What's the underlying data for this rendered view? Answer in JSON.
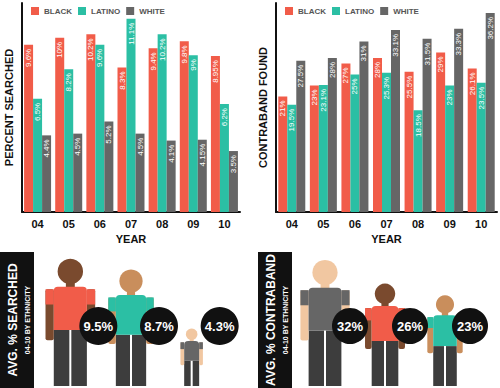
{
  "chart_data": [
    {
      "type": "bar",
      "ylabel": "PERCENT SEARCHED",
      "xlabel": "YEAR",
      "categories": [
        "04",
        "05",
        "06",
        "07",
        "08",
        "09",
        "10"
      ],
      "series": [
        {
          "name": "BLACK",
          "color": "#f15c49",
          "values": [
            9.6,
            10,
            10.2,
            8.3,
            9.4,
            9.8,
            8.95
          ],
          "value_labels": [
            "9.6%",
            "10%",
            "10.2%",
            "8.3%",
            "9.4%",
            "9.8%",
            "8.95%"
          ]
        },
        {
          "name": "LATINO",
          "color": "#2bbfa4",
          "values": [
            6.5,
            8.2,
            9.6,
            11.1,
            10.2,
            9,
            6.2
          ],
          "value_labels": [
            "6.5%",
            "8.2%",
            "9.6%",
            "11.1%",
            "10.2%",
            "9%",
            "6.2%"
          ]
        },
        {
          "name": "WHITE",
          "color": "#666666",
          "values": [
            4.4,
            4.5,
            5.2,
            4.5,
            4.1,
            4.15,
            3.5
          ],
          "value_labels": [
            "4.4%",
            "4.5%",
            "5.2%",
            "4.5%",
            "4.1%",
            "4.15%",
            "3.5%"
          ]
        }
      ],
      "ylim": [
        0,
        12
      ],
      "yticks": [],
      "tick_labels": "x",
      "legend": "upper left",
      "data_labels": true
    },
    {
      "type": "bar",
      "ylabel": "CONTRABAND FOUND",
      "xlabel": "YEAR",
      "categories": [
        "04",
        "05",
        "06",
        "07",
        "08",
        "09",
        "10"
      ],
      "series": [
        {
          "name": "BLACK",
          "color": "#f15c49",
          "values": [
            21,
            23,
            27,
            28,
            25.5,
            29,
            26.1
          ],
          "value_labels": [
            "21%",
            "23%",
            "27%",
            "28%",
            "25.5%",
            "29%",
            "26.1%"
          ]
        },
        {
          "name": "LATINO",
          "color": "#2bbfa4",
          "values": [
            19.5,
            23.1,
            25,
            25.3,
            18.5,
            23,
            23.5
          ],
          "value_labels": [
            "19.5%",
            "23.1%",
            "25%",
            "25.3%",
            "18.5%",
            "23%",
            "23.5%"
          ]
        },
        {
          "name": "WHITE",
          "color": "#666666",
          "values": [
            27.5,
            28,
            31,
            33.1,
            31.5,
            33.3,
            36.2
          ],
          "value_labels": [
            "27.5%",
            "28%",
            "31%",
            "33.1%",
            "31.5%",
            "33.3%",
            "36.2%"
          ]
        }
      ],
      "ylim": [
        0,
        38
      ],
      "yticks": [],
      "tick_labels": "x",
      "legend": "upper left",
      "data_labels": true
    },
    {
      "type": "pictorial",
      "title": "AVG. % SEARCHED",
      "subtitle": "04-10 BY ETHNICITY",
      "values": [
        9.5,
        8.7,
        4.3
      ],
      "value_labels": [
        "9.5%",
        "8.7%",
        "4.3%"
      ],
      "colors": [
        "#f15c49",
        "#2bbfa4",
        "#666666"
      ],
      "ylim": [
        0,
        10
      ],
      "yticks": [],
      "tick_labels": false,
      "data_labels": true
    },
    {
      "type": "pictorial",
      "title": "AVG. % CONTRABAND",
      "subtitle": "04-10 BY ETHNICITY",
      "values": [
        32,
        26,
        23
      ],
      "value_labels": [
        "32%",
        "26%",
        "23%"
      ],
      "colors": [
        "#666666",
        "#f15c49",
        "#2bbfa4"
      ],
      "ylim": [
        0,
        34
      ],
      "yticks": [],
      "tick_labels": false,
      "data_labels": true
    }
  ]
}
